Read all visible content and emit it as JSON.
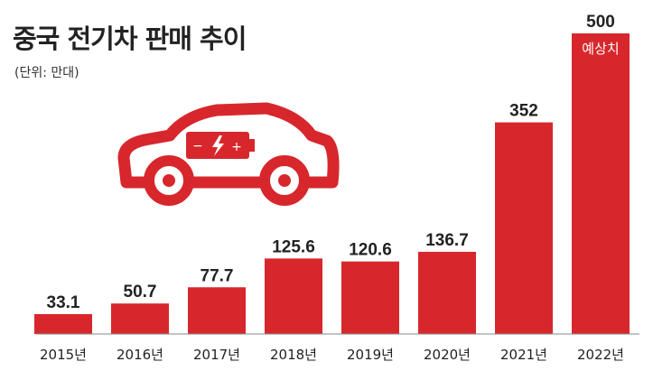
{
  "title": "중국 전기차 판매 추이",
  "unit": "(단위: 만대)",
  "colors": {
    "bar": "#d7272c",
    "text": "#222222",
    "axis": "#888888"
  },
  "car_icon": "electric-car-battery-icon",
  "chart_data": {
    "type": "bar",
    "title": "중국 전기차 판매 추이",
    "unit": "(단위: 만대)",
    "categories": [
      "2015년",
      "2016년",
      "2017년",
      "2018년",
      "2019년",
      "2020년",
      "2021년",
      "2022년"
    ],
    "values": [
      33.1,
      50.7,
      77.7,
      125.6,
      120.6,
      136.7,
      352,
      500
    ],
    "value_labels": [
      "33.1",
      "50.7",
      "77.7",
      "125.6",
      "120.6",
      "136.7",
      "352",
      "500"
    ],
    "annotations": [
      {
        "category": "2022년",
        "text": "예상치"
      }
    ],
    "ylim": [
      0,
      500
    ],
    "grid": false,
    "legend": "none"
  }
}
